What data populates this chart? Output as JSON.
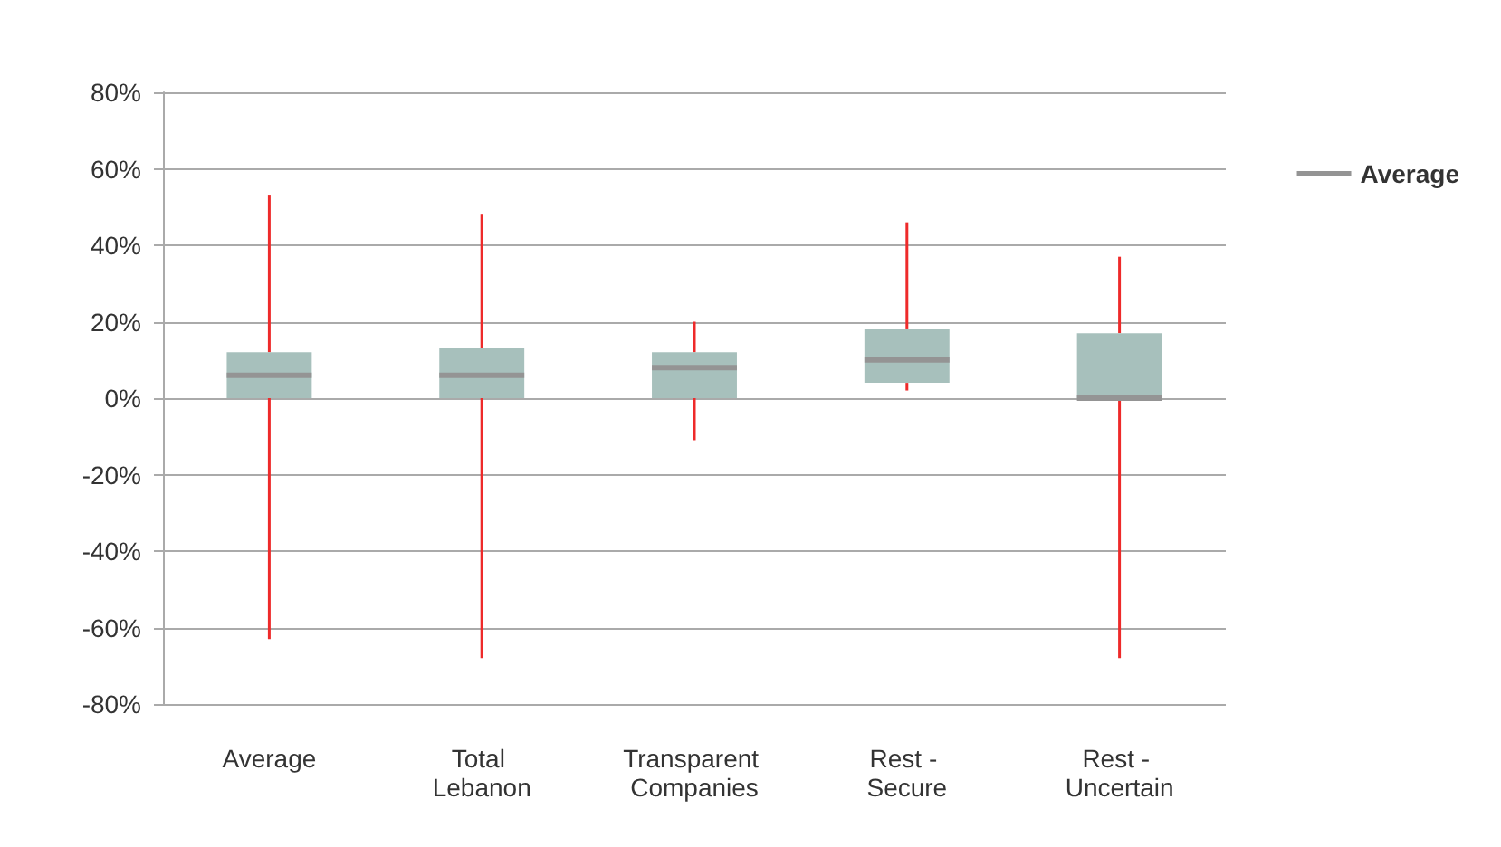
{
  "chart_data": {
    "type": "box",
    "categories": [
      "Average",
      "Total Lebanon",
      "Transparent Companies",
      "Rest - Secure",
      "Rest - Uncertain"
    ],
    "ylim": [
      -80,
      80
    ],
    "yticks": [
      {
        "value": -80,
        "label": "-80%"
      },
      {
        "value": -60,
        "label": "-60%"
      },
      {
        "value": -40,
        "label": "-40%"
      },
      {
        "value": -20,
        "label": "-20%"
      },
      {
        "value": 0,
        "label": "0%"
      },
      {
        "value": 20,
        "label": "20%"
      },
      {
        "value": 40,
        "label": "40%"
      },
      {
        "value": 60,
        "label": "60%"
      },
      {
        "value": 80,
        "label": "80%"
      }
    ],
    "grid": "y",
    "legend": "top right",
    "series": [
      {
        "name": "Average",
        "color": "#a7c0bc",
        "boxes": [
          {
            "low": -63,
            "q1": 0,
            "median": 6,
            "q3": 12,
            "high": 53
          },
          {
            "low": -68,
            "q1": 0,
            "median": 6,
            "q3": 13,
            "high": 48
          },
          {
            "low": -11,
            "q1": 0,
            "median": 8,
            "q3": 12,
            "high": 20
          },
          {
            "low": 2,
            "q1": 4,
            "median": 10,
            "q3": 18,
            "high": 46
          },
          {
            "low": -68,
            "q1": 0,
            "median": 0,
            "q3": 17,
            "high": 37
          }
        ]
      }
    ]
  }
}
